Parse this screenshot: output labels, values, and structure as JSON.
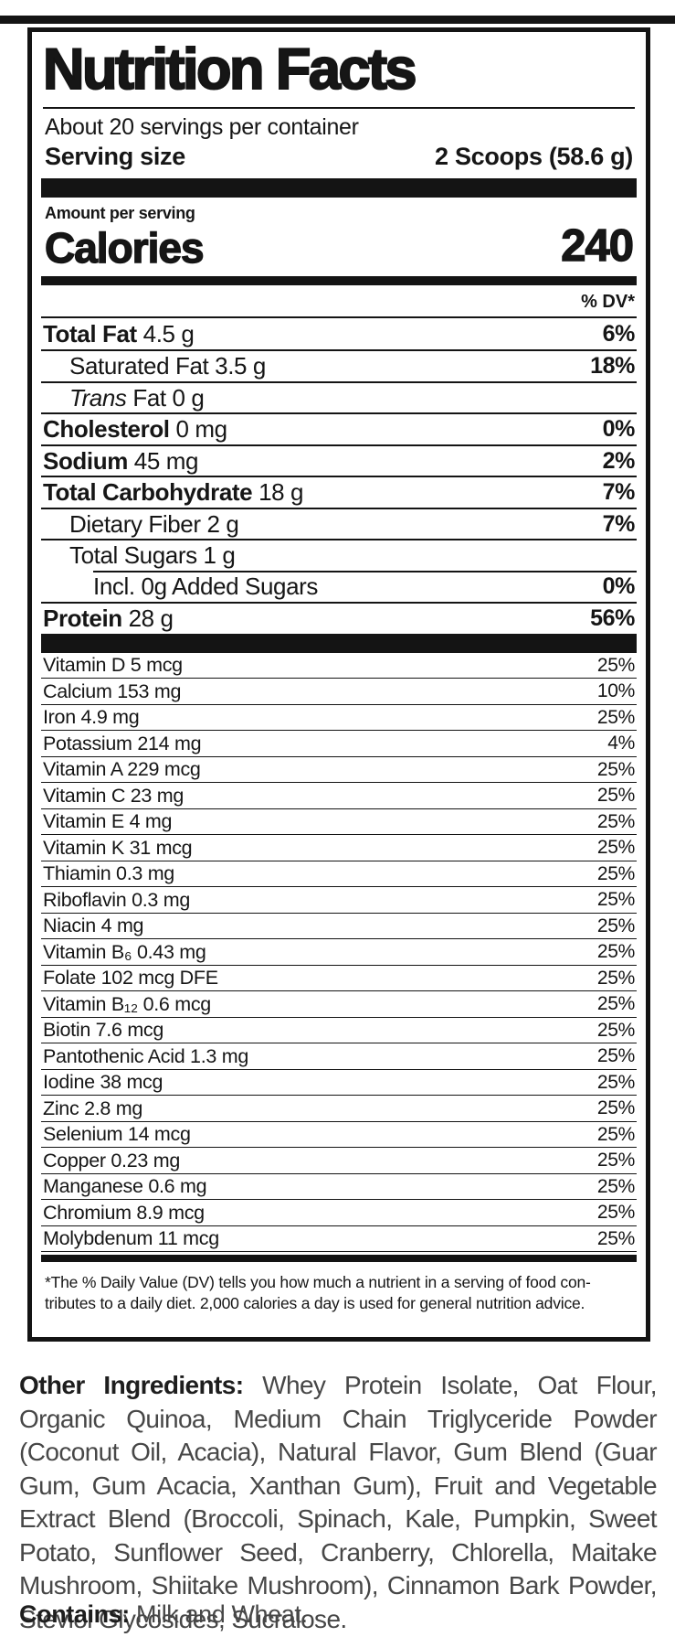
{
  "label": {
    "title": "Nutrition Facts",
    "servings_per_container": "About 20 servings per container",
    "serving_size_label": "Serving size",
    "serving_size_value": "2 Scoops (58.6 g)",
    "amount_per_serving_label": "Amount per serving",
    "calories_label": "Calories",
    "calories_value": "240",
    "daily_value_header": "% DV*",
    "nutrients": [
      {
        "bold": "Total Fat",
        "rest": " 4.5 g",
        "dv": "6%",
        "indent": 0
      },
      {
        "rest": "Saturated Fat 3.5 g",
        "dv": "18%",
        "indent": 1
      },
      {
        "italic": "Trans",
        "rest": " Fat 0 g",
        "dv": "",
        "indent": 1
      },
      {
        "bold": "Cholesterol",
        "rest": " 0 mg",
        "dv": "0%",
        "indent": 0
      },
      {
        "bold": "Sodium",
        "rest": " 45 mg",
        "dv": "2%",
        "indent": 0
      },
      {
        "bold": "Total Carbohydrate",
        "rest": " 18 g",
        "dv": "7%",
        "indent": 0
      },
      {
        "rest": "Dietary Fiber 2 g",
        "dv": "7%",
        "indent": 1
      },
      {
        "rest": "Total Sugars 1 g",
        "dv": "",
        "indent": 1
      },
      {
        "rest": "Incl. 0g Added Sugars",
        "dv": "0%",
        "indent": 2
      },
      {
        "bold": "Protein",
        "rest": " 28 g",
        "dv": "56%",
        "indent": 0
      }
    ],
    "micronutrients": [
      {
        "name": "Vitamin D 5 mcg",
        "dv": "25%"
      },
      {
        "name": "Calcium 153 mg",
        "dv": "10%"
      },
      {
        "name": "Iron 4.9 mg",
        "dv": "25%"
      },
      {
        "name": "Potassium 214 mg",
        "dv": "4%"
      },
      {
        "name": "Vitamin A 229 mcg",
        "dv": "25%"
      },
      {
        "name": "Vitamin C 23 mg",
        "dv": "25%"
      },
      {
        "name": "Vitamin E 4 mg",
        "dv": "25%"
      },
      {
        "name": "Vitamin K 31 mcg",
        "dv": "25%"
      },
      {
        "name": "Thiamin 0.3 mg",
        "dv": "25%"
      },
      {
        "name": "Riboflavin 0.3 mg",
        "dv": "25%"
      },
      {
        "name": "Niacin 4 mg",
        "dv": "25%"
      },
      {
        "name": "Vitamin B₆ 0.43 mg",
        "dv": "25%"
      },
      {
        "name": "Folate 102 mcg DFE",
        "dv": "25%"
      },
      {
        "name": "Vitamin B₁₂ 0.6 mcg",
        "dv": "25%"
      },
      {
        "name": "Biotin 7.6 mcg",
        "dv": "25%"
      },
      {
        "name": "Pantothenic Acid 1.3 mg",
        "dv": "25%"
      },
      {
        "name": "Iodine 38 mcg",
        "dv": "25%"
      },
      {
        "name": "Zinc 2.8 mg",
        "dv": "25%"
      },
      {
        "name": "Selenium 14 mcg",
        "dv": "25%"
      },
      {
        "name": "Copper 0.23 mg",
        "dv": "25%"
      },
      {
        "name": "Manganese 0.6 mg",
        "dv": "25%"
      },
      {
        "name": "Chromium 8.9 mcg",
        "dv": "25%"
      },
      {
        "name": "Molybdenum 11 mcg",
        "dv": "25%"
      }
    ],
    "footnote_line1": "*The % Daily Value (DV) tells you how much a nutrient in a serving of food con-",
    "footnote_line2": "tributes to a daily diet. 2,000 calories a day is used for general nutrition advice."
  },
  "other_ingredients": {
    "label": "Other Ingredients:",
    "text": " Whey Protein Isolate, Oat Flour, Organic Quinoa, Medium Chain Triglyceride Powder (Coconut Oil, Acacia), Natural Flavor, Gum Blend (Guar Gum, Gum Acacia, Xanthan Gum), Fruit and Vegetable Extract Blend (Broccoli, Spinach, Kale, Pumpkin, Sweet Potato, Sunflower Seed, Cranberry, Chlorella, Maitake Mushroom, Shiitake Mushroom), Cinnamon Bark Powder, Steviol Glycosides, Sucralose."
  },
  "contains": {
    "label": "Contains:",
    "text": " Milk and Wheat."
  },
  "colors": {
    "ink": "#141414",
    "body_text": "#474747"
  }
}
